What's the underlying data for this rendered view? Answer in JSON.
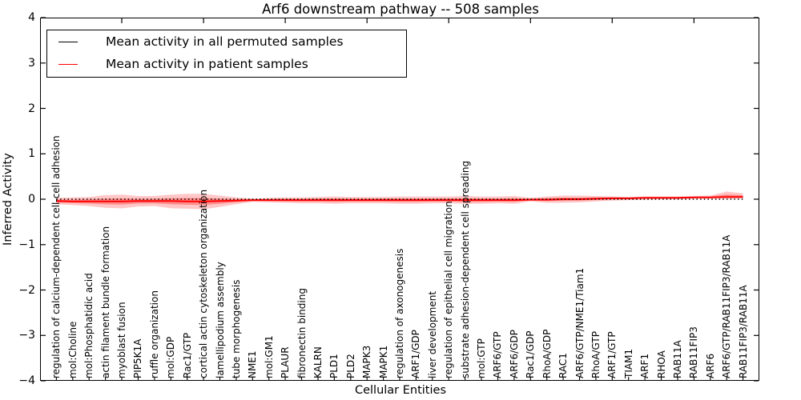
{
  "title": "Arf6 downstream pathway -- 508 samples",
  "axes": {
    "ylabel": "Inferred Activity",
    "xlabel": "Cellular Entities",
    "ytick_labels": [
      "4",
      "3",
      "2",
      "1",
      "0",
      "−1",
      "−2",
      "−3",
      "−4"
    ]
  },
  "legend": {
    "items": [
      {
        "label": "Mean activity in all permuted samples",
        "color": "#000000"
      },
      {
        "label": "Mean activity in patient samples",
        "color": "#ff0000"
      }
    ]
  },
  "chart_data": {
    "type": "line",
    "title": "Arf6 downstream pathway -- 508 samples",
    "xlabel": "Cellular Entities",
    "ylabel": "Inferred Activity",
    "ylim": [
      -4,
      4
    ],
    "yticks": [
      4,
      3,
      2,
      1,
      0,
      -1,
      -2,
      -3,
      -4
    ],
    "grid": false,
    "legend_position": "upper left",
    "categories": [
      "regulation of calcium-dependent cell-cell adhesion",
      "mol:Choline",
      "mol:Phosphatidic acid",
      "actin filament bundle formation",
      "myoblast fusion",
      "PIP5K1A",
      "ruffle organization",
      "mol:GDP",
      "Rac1/GTP",
      "cortical actin cytoskeleton organization",
      "lamellipodium assembly",
      "tube morphogenesis",
      "NME1",
      "mol:GM1",
      "PLAUR",
      "fibronectin binding",
      "KALRN",
      "PLD1",
      "PLD2",
      "MAPK3",
      "MAPK1",
      "regulation of axonogenesis",
      "ARF1/GDP",
      "liver development",
      "regulation of epithelial cell migration",
      "substrate adhesion-dependent cell spreading",
      "mol:GTP",
      "ARF6/GTP",
      "ARF6/GDP",
      "Rac1/GDP",
      "RhoA/GDP",
      "RAC1",
      "ARF6/GTP/NME1/Tiam1",
      "RhoA/GTP",
      "ARF1/GTP",
      "TIAM1",
      "ARF1",
      "RHOA",
      "RAB11A",
      "RAB11FIP3",
      "ARF6",
      "ARF6/GTP/RAB11FIP3/RAB11A",
      "RAB11FIP3/RAB11A"
    ],
    "series": [
      {
        "name": "Mean activity in all permuted samples",
        "color": "#000000",
        "style": "dotted",
        "values": [
          0,
          0,
          0,
          0,
          0,
          0,
          0,
          0,
          0,
          0,
          0,
          0,
          0,
          0,
          0,
          0,
          0,
          0,
          0,
          0,
          0,
          0,
          0,
          0,
          0,
          0,
          0,
          0,
          0,
          0,
          0,
          0,
          0,
          0,
          0,
          0,
          0,
          0,
          0,
          0,
          0,
          0,
          0
        ]
      },
      {
        "name": "Mean activity in patient samples",
        "color": "#ff0000",
        "style": "solid",
        "values": [
          -0.04,
          -0.05,
          -0.05,
          -0.05,
          -0.05,
          -0.04,
          -0.04,
          -0.04,
          -0.05,
          -0.05,
          -0.04,
          -0.03,
          -0.02,
          -0.02,
          -0.02,
          -0.02,
          -0.02,
          -0.02,
          -0.02,
          -0.02,
          -0.02,
          -0.02,
          -0.02,
          -0.02,
          -0.02,
          -0.02,
          -0.02,
          -0.02,
          -0.02,
          -0.01,
          -0.01,
          0.0,
          0.0,
          0.01,
          0.02,
          0.02,
          0.03,
          0.03,
          0.03,
          0.04,
          0.04,
          0.05,
          0.05
        ],
        "band_upper": [
          0.03,
          0.04,
          0.05,
          0.09,
          0.1,
          0.07,
          0.07,
          0.1,
          0.12,
          0.12,
          0.08,
          0.04,
          0.01,
          0.03,
          0.04,
          0.04,
          0.05,
          0.06,
          0.05,
          0.05,
          0.05,
          0.06,
          0.06,
          0.06,
          0.06,
          0.07,
          0.06,
          0.06,
          0.07,
          0.03,
          0.06,
          0.08,
          0.08,
          0.07,
          0.06,
          0.05,
          0.06,
          0.06,
          0.06,
          0.07,
          0.08,
          0.17,
          0.13
        ],
        "band_lower": [
          -0.11,
          -0.13,
          -0.15,
          -0.19,
          -0.2,
          -0.16,
          -0.15,
          -0.2,
          -0.21,
          -0.22,
          -0.17,
          -0.11,
          -0.06,
          -0.07,
          -0.08,
          -0.09,
          -0.09,
          -0.1,
          -0.09,
          -0.09,
          -0.09,
          -0.1,
          -0.1,
          -0.09,
          -0.09,
          -0.1,
          -0.1,
          -0.09,
          -0.1,
          -0.05,
          -0.08,
          -0.08,
          -0.07,
          -0.05,
          -0.03,
          -0.02,
          -0.01,
          0.0,
          0.0,
          0.01,
          0.01,
          0.01,
          0.02
        ],
        "band_color": "#ff0000",
        "band_opacity": 0.22
      }
    ]
  }
}
